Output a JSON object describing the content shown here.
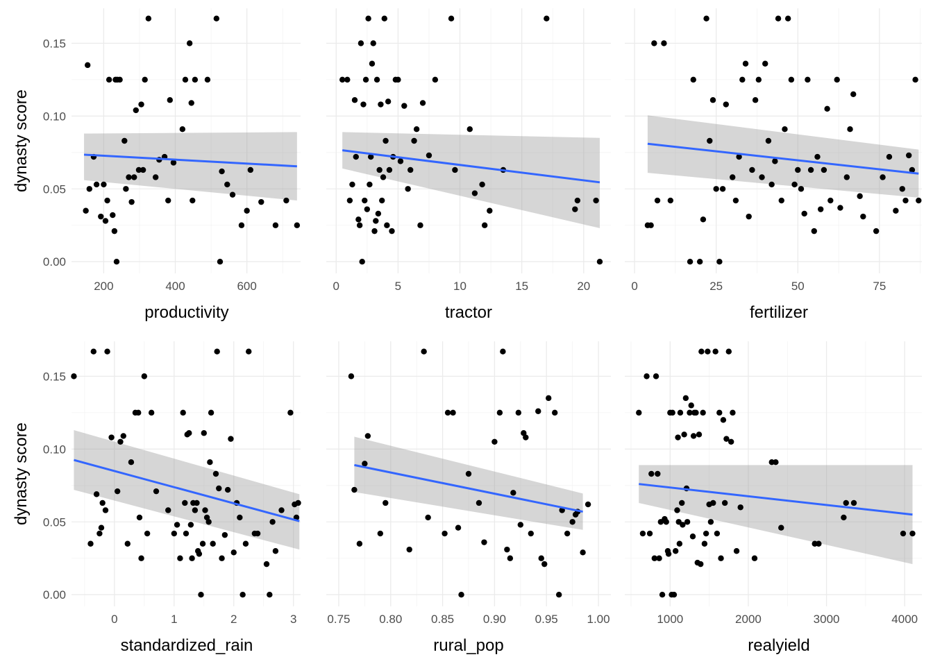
{
  "figure": {
    "shared_ylabel": "dynasty score"
  },
  "chart_data": [
    {
      "type": "scatter",
      "xlabel": "productivity",
      "ylabel": "dynasty score",
      "xlim": [
        110,
        750
      ],
      "ylim": [
        -0.008,
        0.174
      ],
      "xticks": [
        200,
        400,
        600
      ],
      "xtick_labels": [
        "200",
        "400",
        "600"
      ],
      "yticks": [
        0.0,
        0.05,
        0.1,
        0.15
      ],
      "ytick_labels": [
        "0.00",
        "0.05",
        "0.10",
        "0.15"
      ],
      "smooth": {
        "method": "lm",
        "color": "#3366ff",
        "x": [
          145,
          740
        ],
        "y": [
          0.0735,
          0.0655
        ],
        "lower": [
          0.056,
          0.042
        ],
        "upper": [
          0.088,
          0.089
        ]
      },
      "points": {
        "x": [
          150,
          155,
          160,
          172,
          180,
          192,
          200,
          205,
          210,
          215,
          225,
          230,
          233,
          236,
          238,
          245,
          258,
          262,
          270,
          278,
          285,
          290,
          298,
          305,
          310,
          315,
          325,
          345,
          355,
          370,
          380,
          385,
          395,
          420,
          428,
          440,
          445,
          448,
          455,
          490,
          515,
          525,
          530,
          545,
          560,
          585,
          600,
          610,
          640,
          680,
          710,
          740
        ],
        "y": [
          0.035,
          0.135,
          0.05,
          0.072,
          0.053,
          0.031,
          0.053,
          0.028,
          0.042,
          0.125,
          0.032,
          0.021,
          0.125,
          0.0,
          0.125,
          0.125,
          0.083,
          0.05,
          0.058,
          0.041,
          0.058,
          0.104,
          0.063,
          0.108,
          0.063,
          0.125,
          0.167,
          0.058,
          0.07,
          0.072,
          0.042,
          0.111,
          0.068,
          0.091,
          0.125,
          0.15,
          0.109,
          0.042,
          0.125,
          0.125,
          0.167,
          0.0,
          0.062,
          0.053,
          0.046,
          0.025,
          0.035,
          0.063,
          0.041,
          0.025,
          0.042,
          0.025
        ]
      }
    },
    {
      "type": "scatter",
      "xlabel": "tractor",
      "ylabel": "dynasty score",
      "xlim": [
        -0.8,
        22.2
      ],
      "ylim": [
        -0.008,
        0.174
      ],
      "xticks": [
        0,
        5,
        10,
        15,
        20
      ],
      "xtick_labels": [
        "0",
        "5",
        "10",
        "15",
        "20"
      ],
      "yticks": [
        0.0,
        0.05,
        0.1,
        0.15
      ],
      "ytick_labels": [],
      "smooth": {
        "method": "lm",
        "color": "#3366ff",
        "x": [
          0.5,
          21.3
        ],
        "y": [
          0.0765,
          0.0545
        ],
        "lower": [
          0.064,
          0.023
        ],
        "upper": [
          0.089,
          0.085
        ]
      },
      "points": {
        "x": [
          0.5,
          0.9,
          1.1,
          1.3,
          1.5,
          1.6,
          1.8,
          1.9,
          2.0,
          2.1,
          2.2,
          2.3,
          2.4,
          2.5,
          2.6,
          2.7,
          2.8,
          2.9,
          3.0,
          3.1,
          3.2,
          3.3,
          3.4,
          3.5,
          3.6,
          3.7,
          3.8,
          3.9,
          4.0,
          4.1,
          4.2,
          4.3,
          4.5,
          4.6,
          4.8,
          5.0,
          5.2,
          5.5,
          5.8,
          6.0,
          6.3,
          6.5,
          6.8,
          7.0,
          7.5,
          8.0,
          9.3,
          9.6,
          10.8,
          11.2,
          11.8,
          12.0,
          12.4,
          13.5,
          17.0,
          19.3,
          19.5,
          21.0,
          21.3
        ],
        "y": [
          0.125,
          0.125,
          0.042,
          0.053,
          0.111,
          0.072,
          0.029,
          0.025,
          0.15,
          0.0,
          0.108,
          0.042,
          0.125,
          0.036,
          0.167,
          0.053,
          0.072,
          0.136,
          0.15,
          0.021,
          0.028,
          0.125,
          0.033,
          0.063,
          0.108,
          0.042,
          0.058,
          0.167,
          0.083,
          0.025,
          0.11,
          0.063,
          0.021,
          0.072,
          0.125,
          0.125,
          0.069,
          0.107,
          0.05,
          0.063,
          0.083,
          0.091,
          0.025,
          0.109,
          0.073,
          0.125,
          0.167,
          0.063,
          0.091,
          0.047,
          0.053,
          0.025,
          0.035,
          0.063,
          0.167,
          0.036,
          0.042,
          0.042,
          0.0
        ]
      }
    },
    {
      "type": "scatter",
      "xlabel": "fertilizer",
      "ylabel": "dynasty score",
      "xlim": [
        -3,
        88
      ],
      "ylim": [
        -0.008,
        0.174
      ],
      "xticks": [
        0,
        25,
        50,
        75
      ],
      "xtick_labels": [
        "0",
        "25",
        "50",
        "75"
      ],
      "yticks": [
        0.0,
        0.05,
        0.1,
        0.15
      ],
      "ytick_labels": [],
      "smooth": {
        "method": "lm",
        "color": "#3366ff",
        "x": [
          4,
          87
        ],
        "y": [
          0.081,
          0.0605
        ],
        "lower": [
          0.061,
          0.044
        ],
        "upper": [
          0.1005,
          0.077
        ]
      },
      "points": {
        "x": [
          4,
          5,
          6,
          7,
          9,
          11,
          17,
          18,
          20,
          21,
          22,
          23,
          24,
          25,
          26,
          27,
          28,
          30,
          31,
          32,
          33,
          34,
          35,
          36,
          37,
          38,
          39,
          40,
          41,
          42,
          43,
          44,
          45,
          46,
          47,
          48,
          49,
          50,
          51,
          52,
          53,
          54,
          55,
          56,
          57,
          58,
          59,
          60,
          62,
          63,
          65,
          66,
          67,
          69,
          70,
          74,
          76,
          78,
          80,
          82,
          83,
          84,
          85,
          86,
          87
        ],
        "y": [
          0.025,
          0.025,
          0.15,
          0.042,
          0.15,
          0.042,
          0.0,
          0.125,
          0.0,
          0.029,
          0.167,
          0.083,
          0.111,
          0.05,
          0.0,
          0.05,
          0.108,
          0.058,
          0.042,
          0.072,
          0.125,
          0.136,
          0.031,
          0.063,
          0.111,
          0.125,
          0.058,
          0.136,
          0.083,
          0.053,
          0.069,
          0.167,
          0.042,
          0.091,
          0.167,
          0.125,
          0.053,
          0.063,
          0.05,
          0.033,
          0.125,
          0.063,
          0.021,
          0.072,
          0.036,
          0.063,
          0.105,
          0.042,
          0.125,
          0.037,
          0.058,
          0.091,
          0.115,
          0.045,
          0.031,
          0.021,
          0.058,
          0.072,
          0.035,
          0.05,
          0.042,
          0.073,
          0.063,
          0.125,
          0.042
        ]
      }
    },
    {
      "type": "scatter",
      "xlabel": "standardized_rain",
      "ylabel": "dynasty score",
      "xlim": [
        -0.72,
        3.12
      ],
      "ylim": [
        -0.008,
        0.174
      ],
      "xticks": [
        0,
        1,
        2,
        3
      ],
      "xtick_labels": [
        "0",
        "1",
        "2",
        "3"
      ],
      "yticks": [
        0.0,
        0.05,
        0.1,
        0.15
      ],
      "ytick_labels": [
        "0.00",
        "0.05",
        "0.10",
        "0.15"
      ],
      "smooth": {
        "method": "lm",
        "color": "#3366ff",
        "x": [
          -0.68,
          3.1
        ],
        "y": [
          0.0925,
          0.0505
        ],
        "lower": [
          0.072,
          0.031
        ],
        "upper": [
          0.113,
          0.069
        ]
      },
      "points": {
        "x": [
          -0.68,
          -0.4,
          -0.35,
          -0.3,
          -0.25,
          -0.22,
          -0.2,
          -0.15,
          -0.12,
          -0.05,
          0.05,
          0.1,
          0.15,
          0.22,
          0.28,
          0.35,
          0.4,
          0.42,
          0.45,
          0.5,
          0.55,
          0.62,
          0.7,
          0.9,
          1.0,
          1.05,
          1.1,
          1.15,
          1.18,
          1.2,
          1.22,
          1.25,
          1.28,
          1.3,
          1.32,
          1.35,
          1.38,
          1.4,
          1.42,
          1.45,
          1.48,
          1.5,
          1.52,
          1.55,
          1.58,
          1.6,
          1.62,
          1.65,
          1.7,
          1.72,
          1.75,
          1.8,
          1.85,
          1.9,
          1.95,
          2.0,
          2.05,
          2.1,
          2.15,
          2.2,
          2.25,
          2.35,
          2.4,
          2.55,
          2.6,
          2.65,
          2.7,
          2.8,
          2.95,
          3.02,
          3.05,
          3.08
        ],
        "y": [
          0.15,
          0.035,
          0.167,
          0.069,
          0.042,
          0.046,
          0.063,
          0.058,
          0.167,
          0.108,
          0.071,
          0.105,
          0.109,
          0.035,
          0.091,
          0.125,
          0.125,
          0.053,
          0.025,
          0.15,
          0.042,
          0.125,
          0.071,
          0.058,
          0.042,
          0.048,
          0.025,
          0.125,
          0.063,
          0.042,
          0.11,
          0.111,
          0.048,
          0.025,
          0.063,
          0.058,
          0.063,
          0.03,
          0.028,
          0.0,
          0.035,
          0.111,
          0.058,
          0.053,
          0.05,
          0.091,
          0.125,
          0.035,
          0.083,
          0.167,
          0.073,
          0.025,
          0.041,
          0.072,
          0.107,
          0.029,
          0.063,
          0.053,
          0.0,
          0.035,
          0.167,
          0.042,
          0.042,
          0.021,
          0.0,
          0.05,
          0.03,
          0.058,
          0.125,
          0.062,
          0.053,
          0.063
        ]
      }
    },
    {
      "type": "scatter",
      "xlabel": "rural_pop",
      "ylabel": "dynasty score",
      "xlim": [
        0.738,
        1.012
      ],
      "ylim": [
        -0.008,
        0.174
      ],
      "xticks": [
        0.75,
        0.8,
        0.85,
        0.9,
        0.95,
        1.0
      ],
      "xtick_labels": [
        "0.75",
        "0.80",
        "0.85",
        "0.90",
        "0.95",
        "1.00"
      ],
      "yticks": [
        0.0,
        0.05,
        0.1,
        0.15
      ],
      "ytick_labels": [],
      "smooth": {
        "method": "lm",
        "color": "#3366ff",
        "x": [
          0.765,
          0.985
        ],
        "y": [
          0.089,
          0.057
        ],
        "lower": [
          0.0705,
          0.0445
        ],
        "upper": [
          0.1085,
          0.0695
        ]
      },
      "points": {
        "x": [
          0.762,
          0.765,
          0.77,
          0.775,
          0.778,
          0.79,
          0.795,
          0.818,
          0.832,
          0.836,
          0.852,
          0.855,
          0.86,
          0.865,
          0.868,
          0.875,
          0.885,
          0.89,
          0.9,
          0.905,
          0.908,
          0.912,
          0.915,
          0.918,
          0.923,
          0.925,
          0.928,
          0.93,
          0.935,
          0.942,
          0.945,
          0.948,
          0.952,
          0.958,
          0.962,
          0.965,
          0.97,
          0.975,
          0.978,
          0.98,
          0.985,
          0.99
        ],
        "y": [
          0.15,
          0.072,
          0.035,
          0.09,
          0.109,
          0.042,
          0.063,
          0.031,
          0.167,
          0.053,
          0.042,
          0.125,
          0.125,
          0.046,
          0.0,
          0.083,
          0.063,
          0.036,
          0.105,
          0.125,
          0.167,
          0.031,
          0.025,
          0.07,
          0.125,
          0.048,
          0.111,
          0.108,
          0.042,
          0.126,
          0.025,
          0.021,
          0.135,
          0.125,
          0.0,
          0.058,
          0.042,
          0.05,
          0.055,
          0.057,
          0.029,
          0.062
        ]
      }
    },
    {
      "type": "scatter",
      "xlabel": "realyield",
      "ylabel": "dynasty score",
      "xlim": [
        420,
        4220
      ],
      "ylim": [
        -0.008,
        0.174
      ],
      "xticks": [
        1000,
        2000,
        3000,
        4000
      ],
      "xtick_labels": [
        "1000",
        "2000",
        "3000",
        "4000"
      ],
      "yticks": [
        0.0,
        0.05,
        0.1,
        0.15
      ],
      "ytick_labels": [],
      "smooth": {
        "method": "lm",
        "color": "#3366ff",
        "x": [
          600,
          4100
        ],
        "y": [
          0.076,
          0.055
        ],
        "lower": [
          0.063,
          0.021
        ],
        "upper": [
          0.089,
          0.089
        ]
      },
      "points": {
        "x": [
          600,
          650,
          700,
          740,
          760,
          800,
          820,
          840,
          860,
          880,
          900,
          930,
          950,
          970,
          980,
          1000,
          1020,
          1030,
          1050,
          1070,
          1090,
          1100,
          1110,
          1120,
          1130,
          1150,
          1160,
          1180,
          1200,
          1210,
          1220,
          1250,
          1270,
          1290,
          1300,
          1310,
          1330,
          1350,
          1370,
          1390,
          1400,
          1420,
          1440,
          1460,
          1480,
          1500,
          1520,
          1550,
          1580,
          1600,
          1630,
          1650,
          1680,
          1700,
          1720,
          1750,
          1780,
          1800,
          1850,
          1900,
          2080,
          2300,
          2350,
          2420,
          2850,
          2900,
          3220,
          3250,
          3350,
          3980,
          4100
        ],
        "y": [
          0.125,
          0.042,
          0.15,
          0.042,
          0.083,
          0.025,
          0.15,
          0.083,
          0.025,
          0.05,
          0.0,
          0.052,
          0.05,
          0.03,
          0.028,
          0.125,
          0.0,
          0.125,
          0.0,
          0.03,
          0.058,
          0.108,
          0.05,
          0.035,
          0.125,
          0.063,
          0.048,
          0.11,
          0.135,
          0.073,
          0.05,
          0.125,
          0.13,
          0.04,
          0.109,
          0.125,
          0.125,
          0.022,
          0.11,
          0.021,
          0.167,
          0.125,
          0.035,
          0.042,
          0.167,
          0.062,
          0.05,
          0.063,
          0.167,
          0.042,
          0.125,
          0.025,
          0.12,
          0.063,
          0.107,
          0.167,
          0.105,
          0.125,
          0.03,
          0.06,
          0.025,
          0.091,
          0.091,
          0.046,
          0.035,
          0.035,
          0.053,
          0.063,
          0.063,
          0.042,
          0.042
        ]
      }
    }
  ]
}
